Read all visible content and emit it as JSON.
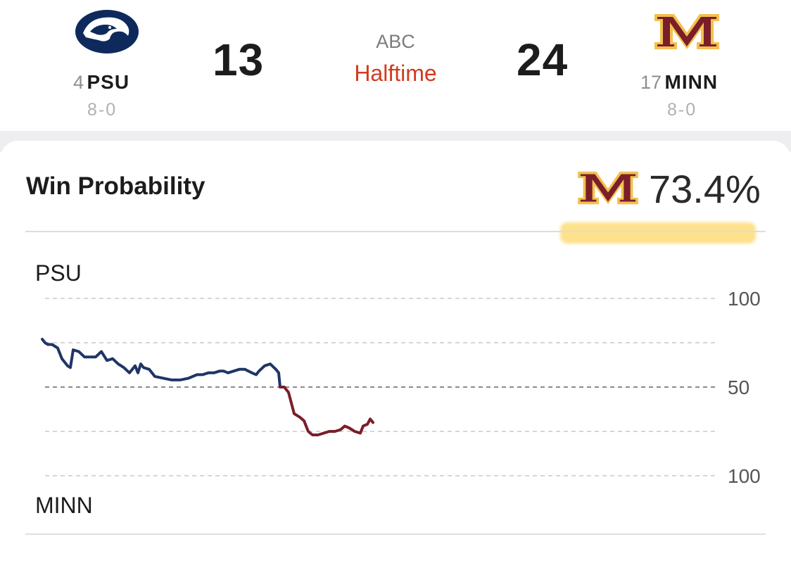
{
  "game": {
    "network": "ABC",
    "status": "Halftime",
    "home": {
      "rank": "4",
      "abbr": "PSU",
      "record": "8-0",
      "score": "13",
      "logo_icon": "penn-state-nittany-lion-logo",
      "color": "#0a2a5e"
    },
    "away": {
      "rank": "17",
      "abbr": "MINN",
      "record": "8-0",
      "score": "24",
      "logo_icon": "minnesota-block-m-logo",
      "color": "#7a1a2a"
    }
  },
  "win_probability": {
    "title": "Win Probability",
    "leader_logo_icon": "minnesota-block-m-logo",
    "value": "73.4%",
    "top_label": "PSU",
    "bottom_label": "MINN",
    "axis_labels": [
      "100",
      "50",
      "100"
    ]
  },
  "chart_data": {
    "type": "line",
    "x_unit": "game progress (fraction of game)",
    "y_meaning": "PSU win probability (%)",
    "ylim": [
      0,
      100
    ],
    "ticks": [
      {
        "value": 100,
        "label": "100"
      },
      {
        "value": 50,
        "label": "50"
      },
      {
        "value": 0,
        "label": "100"
      }
    ],
    "series": [
      {
        "color": "#1f3566",
        "points": [
          [
            0.0,
            77
          ],
          [
            0.01,
            75
          ],
          [
            0.02,
            74
          ],
          [
            0.035,
            74
          ],
          [
            0.045,
            73
          ],
          [
            0.055,
            72
          ],
          [
            0.07,
            66
          ],
          [
            0.09,
            62
          ],
          [
            0.1,
            61
          ],
          [
            0.11,
            71
          ],
          [
            0.13,
            70
          ],
          [
            0.15,
            67
          ],
          [
            0.17,
            67
          ],
          [
            0.19,
            67
          ],
          [
            0.21,
            70
          ],
          [
            0.23,
            65
          ],
          [
            0.25,
            66
          ],
          [
            0.27,
            63
          ],
          [
            0.29,
            61
          ],
          [
            0.31,
            58
          ],
          [
            0.33,
            62
          ],
          [
            0.34,
            58
          ],
          [
            0.35,
            63
          ],
          [
            0.36,
            61
          ],
          [
            0.38,
            60
          ],
          [
            0.4,
            56
          ],
          [
            0.43,
            55
          ],
          [
            0.46,
            54
          ],
          [
            0.49,
            54
          ],
          [
            0.52,
            55
          ],
          [
            0.55,
            57
          ],
          [
            0.57,
            57
          ],
          [
            0.59,
            58
          ],
          [
            0.61,
            58
          ],
          [
            0.63,
            59
          ],
          [
            0.645,
            59
          ],
          [
            0.66,
            58
          ],
          [
            0.68,
            59
          ],
          [
            0.7,
            60
          ],
          [
            0.72,
            60
          ],
          [
            0.745,
            58
          ],
          [
            0.76,
            57
          ],
          [
            0.77,
            59
          ],
          [
            0.79,
            62
          ],
          [
            0.81,
            63
          ],
          [
            0.83,
            60
          ],
          [
            0.84,
            58
          ],
          [
            0.845,
            50
          ]
        ]
      },
      {
        "color": "#7a1e2a",
        "points": [
          [
            0.845,
            50
          ],
          [
            0.86,
            50
          ],
          [
            0.875,
            47
          ],
          [
            0.895,
            35
          ],
          [
            0.915,
            33
          ],
          [
            0.93,
            31
          ],
          [
            0.945,
            25
          ],
          [
            0.96,
            23
          ],
          [
            0.98,
            23
          ],
          [
            1.0,
            24
          ],
          [
            1.02,
            25
          ],
          [
            1.04,
            25
          ],
          [
            1.06,
            26
          ],
          [
            1.075,
            28
          ],
          [
            1.09,
            27
          ],
          [
            1.11,
            25
          ],
          [
            1.13,
            24
          ],
          [
            1.14,
            28
          ],
          [
            1.155,
            29
          ],
          [
            1.165,
            32
          ],
          [
            1.175,
            30
          ]
        ]
      }
    ],
    "grid": true
  }
}
